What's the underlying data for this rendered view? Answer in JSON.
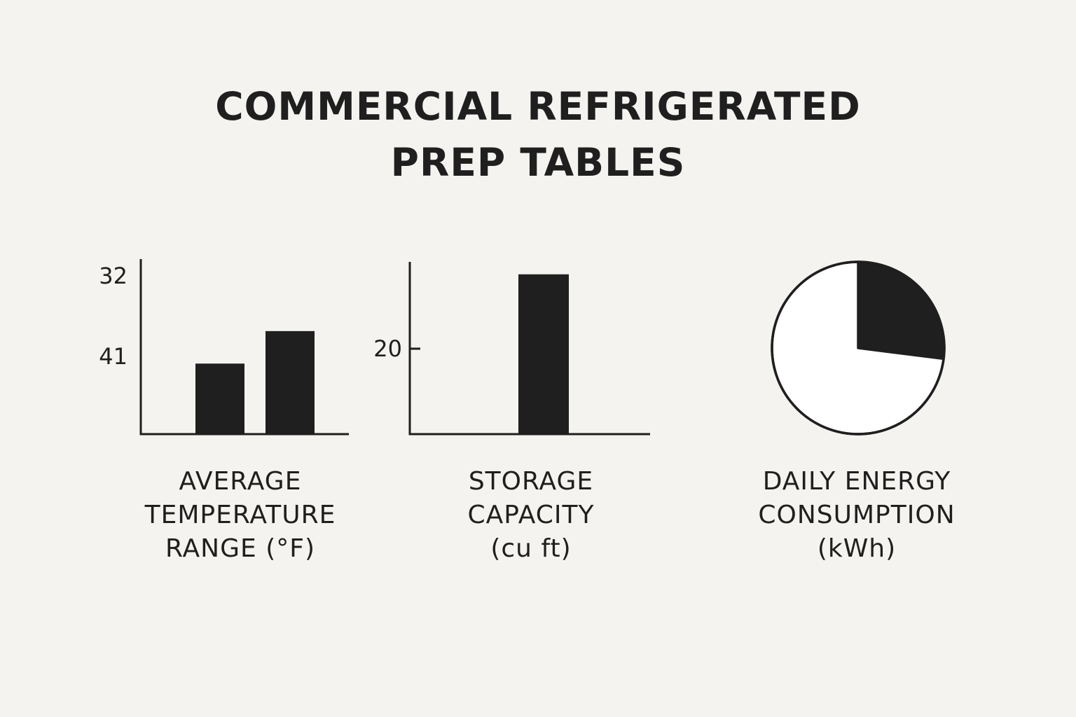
{
  "title_lines": [
    "COMMERCIAL REFRIGERATED",
    "PREP TABLES"
  ],
  "colors": {
    "background": "#f4f3ef",
    "ink": "#1f1f1f",
    "pie_remainder": "#ffffff"
  },
  "chart_data": [
    {
      "type": "bar",
      "title_lines": [
        "AVERAGE",
        "TEMPERATURE",
        "RANGE (°F)"
      ],
      "y_tick_labels": [
        "32",
        "41"
      ],
      "categories": [
        "",
        ""
      ],
      "values": [
        41,
        37.5
      ],
      "y_axis_inverted": true,
      "ylim": [
        48.6,
        31.4
      ],
      "grid": false
    },
    {
      "type": "bar",
      "title_lines": [
        "STORAGE",
        "CAPACITY",
        "(cu ft)"
      ],
      "y_tick_labels": [
        "20"
      ],
      "y_ticks": [
        20
      ],
      "categories": [
        ""
      ],
      "values": [
        38.5
      ],
      "ylim": [
        0,
        41.5
      ],
      "grid": false
    },
    {
      "type": "pie",
      "title_lines": [
        "DAILY ENERGY",
        "CONSUMPTION",
        "(kWh)"
      ],
      "slices": [
        {
          "label": "",
          "fraction": 0.27,
          "color": "#1f1f1f"
        },
        {
          "label": "",
          "fraction": 0.73,
          "color": "#ffffff"
        }
      ],
      "start": "top",
      "direction": "clockwise"
    }
  ]
}
